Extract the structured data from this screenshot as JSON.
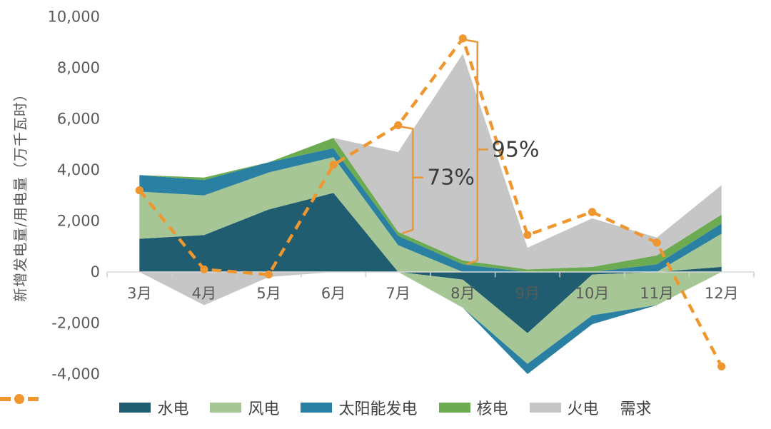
{
  "chart_data": {
    "type": "area",
    "subtype": "stacked-area-with-demand-line",
    "title": "",
    "ylabel": "新增发电量/用电量（万千瓦时）",
    "ylim": [
      -4000,
      10000
    ],
    "y_ticks": [
      10000,
      8000,
      6000,
      4000,
      2000,
      0,
      -2000,
      -4000
    ],
    "grid": "off",
    "legend_position": "bottom-center",
    "categories": [
      "3月",
      "4月",
      "5月",
      "6月",
      "7月",
      "8月",
      "9月",
      "10月",
      "11月",
      "12月"
    ],
    "series": [
      {
        "id": "hydro",
        "name": "水电",
        "color": "#205d70",
        "values": [
          1300,
          1450,
          2450,
          3100,
          0,
          -300,
          -2400,
          -100,
          0,
          200
        ]
      },
      {
        "id": "wind",
        "name": "风电",
        "color": "#a6c695",
        "values": [
          1850,
          1550,
          1450,
          1400,
          1050,
          -1100,
          -1200,
          -1600,
          -1300,
          1300
        ]
      },
      {
        "id": "solar",
        "name": "太阳能发电",
        "color": "#2a80a2",
        "values": [
          650,
          600,
          400,
          350,
          370,
          300,
          -400,
          -350,
          300,
          400
        ]
      },
      {
        "id": "nuclear",
        "name": "核电",
        "color": "#6cab51",
        "values": [
          0,
          100,
          0,
          400,
          150,
          150,
          100,
          200,
          350,
          350
        ]
      },
      {
        "id": "thermal",
        "name": "火电",
        "color": "#c6c6c6",
        "values": [
          0,
          -1300,
          -200,
          0,
          3130,
          8100,
          850,
          1900,
          700,
          1150
        ]
      }
    ],
    "line_series": {
      "id": "demand",
      "name": "需求",
      "color": "#f0962f",
      "style": "dashed-with-markers",
      "values": [
        3200,
        100,
        -100,
        4200,
        5750,
        9150,
        1450,
        2350,
        1150,
        -3700
      ]
    },
    "annotations": [
      {
        "id": "73pct",
        "label": "73%",
        "category": "7月",
        "top_value": 5750,
        "bottom_value": 1650
      },
      {
        "id": "95pct",
        "label": "95%",
        "category": "8月",
        "top_value": 9150,
        "bottom_value": 450
      }
    ],
    "colors": {
      "axis_line": "#d9d9d9",
      "tick_mark": "#cfcfcf",
      "tick_label": "#595959",
      "annotation_bracket": "#e9973d",
      "annotation_text": "#3d3d3d",
      "legend_text": "#404040"
    }
  }
}
